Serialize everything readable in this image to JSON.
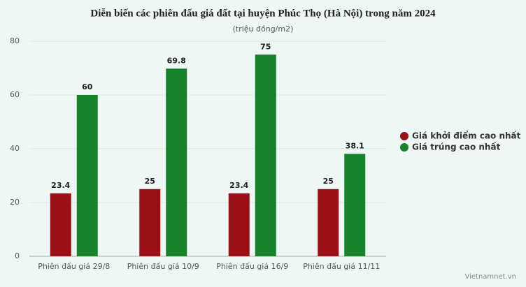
{
  "chart_data": {
    "type": "bar",
    "title": "Diễn biến các phiên đấu giá đất tại huyện Phúc Thọ (Hà Nội) trong năm 2024",
    "subtitle": "(triệu đồng/m2)",
    "categories": [
      "Phiên đấu giá 29/8",
      "Phiên đấu giá 10/9",
      "Phiên đấu giá 16/9",
      "Phiên đấu giá 11/11"
    ],
    "series": [
      {
        "name": "Giá khởi điểm cao nhất",
        "color": "#9a1016",
        "values": [
          23.4,
          25,
          23.4,
          25
        ]
      },
      {
        "name": "Giá trúng cao nhất",
        "color": "#16832a",
        "values": [
          60,
          69.8,
          75,
          38.1
        ]
      }
    ],
    "ylim": [
      0,
      80
    ],
    "yticks": [
      0,
      20,
      40,
      60,
      80
    ],
    "grid": true,
    "legend": "right",
    "source": "Vietnamnet.vn"
  }
}
